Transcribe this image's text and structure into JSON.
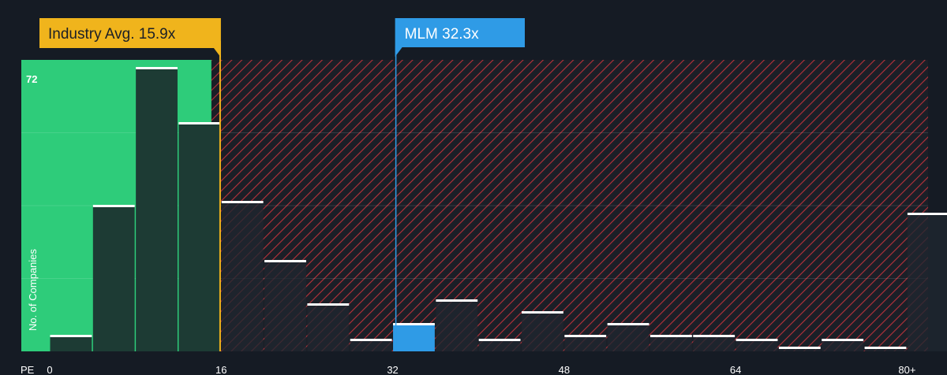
{
  "chart_data": {
    "type": "bar",
    "xlabel": "PE",
    "ylabel": "No. of Companies",
    "x_ticks": [
      {
        "value": 0,
        "label": "0"
      },
      {
        "value": 16,
        "label": "16"
      },
      {
        "value": 32,
        "label": "32"
      },
      {
        "value": 48,
        "label": "48"
      },
      {
        "value": 64,
        "label": "64"
      },
      {
        "value": 80,
        "label": "80+"
      }
    ],
    "xlim": [
      0,
      82
    ],
    "ylim": [
      0,
      74
    ],
    "y_max_label": "72",
    "bin_width": 4,
    "bins": [
      {
        "x": 0,
        "count": 4
      },
      {
        "x": 4,
        "count": 37
      },
      {
        "x": 8,
        "count": 72
      },
      {
        "x": 12,
        "count": 58
      },
      {
        "x": 16,
        "count": 38
      },
      {
        "x": 20,
        "count": 23
      },
      {
        "x": 24,
        "count": 12
      },
      {
        "x": 28,
        "count": 3
      },
      {
        "x": 32,
        "count": 7,
        "highlight": true
      },
      {
        "x": 36,
        "count": 13
      },
      {
        "x": 40,
        "count": 3
      },
      {
        "x": 44,
        "count": 10
      },
      {
        "x": 48,
        "count": 4
      },
      {
        "x": 52,
        "count": 7
      },
      {
        "x": 56,
        "count": 4
      },
      {
        "x": 60,
        "count": 4
      },
      {
        "x": 64,
        "count": 3
      },
      {
        "x": 68,
        "count": 1
      },
      {
        "x": 72,
        "count": 3
      },
      {
        "x": 76,
        "count": 1
      },
      {
        "x": 80,
        "count": 35
      }
    ],
    "industry_avg": {
      "label": "Industry Avg. 15.9x",
      "value": 15.9
    },
    "company": {
      "label": "MLM 32.3x",
      "value": 32.3
    },
    "colors": {
      "background": "#151b24",
      "fair_zone": "#2ecc7a",
      "over_zone_hatch": "#c0343e",
      "bar": "#1d3b34",
      "bar_over": "#1f2630",
      "bar_top": "#ffffff",
      "highlight_bar": "#2f9be6",
      "industry_callout": "#f0b41c",
      "company_callout": "#2f9be6"
    }
  }
}
